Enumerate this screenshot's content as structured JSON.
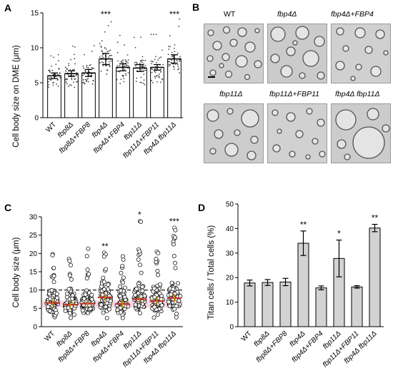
{
  "panelA": {
    "letter": "A",
    "ylabel": "Cell body size on DME (μm)",
    "ylim": [
      0,
      15
    ],
    "yticks": [
      "0",
      "5",
      "10",
      "15"
    ],
    "chart_data": {
      "type": "bar",
      "categories": [
        "WT",
        "fbp8Δ",
        "fbp8Δ+FBP8",
        "fbp4Δ",
        "fbp4Δ+FBP4",
        "fbp11Δ",
        "fbp11Δ+FBP11",
        "fbp4Δ fbp11Δ"
      ],
      "values": [
        6.0,
        6.3,
        6.4,
        8.4,
        7.2,
        7.1,
        7.2,
        8.4
      ],
      "errors": [
        0.4,
        0.4,
        0.5,
        0.8,
        0.5,
        0.5,
        0.4,
        0.6
      ],
      "significance": [
        "",
        "",
        "",
        "***",
        "",
        "",
        "",
        "***"
      ],
      "ylabel": "Cell body size on DME (μm)",
      "ylim": [
        0,
        15
      ]
    }
  },
  "panelB": {
    "letter": "B",
    "images": [
      {
        "label": "WT"
      },
      {
        "label": "fbp4Δ"
      },
      {
        "label": "fbp4Δ+FBP4"
      },
      {
        "label": "fbp11Δ"
      },
      {
        "label": "fbp11Δ+FBP11"
      },
      {
        "label": "fbp4Δ fbp11Δ"
      }
    ]
  },
  "panelC": {
    "letter": "C",
    "ylabel": "Cell body size (μm)",
    "ylim": [
      0,
      30
    ],
    "yticks": [
      "0",
      "5",
      "10",
      "15",
      "20",
      "25",
      "30"
    ],
    "chart_data": {
      "type": "scatter",
      "categories": [
        "WT",
        "fbp8Δ",
        "fbp8Δ+FBP8",
        "fbp4Δ",
        "fbp4Δ+FBP4",
        "fbp11Δ",
        "fbp11Δ+FBP11",
        "fbp4Δ fbp11Δ"
      ],
      "medians": [
        6.5,
        6.0,
        6.3,
        8.0,
        6.2,
        7.5,
        7.0,
        7.8
      ],
      "max_values": [
        19.8,
        18.5,
        21.3,
        20.2,
        19.2,
        28.8,
        20.5,
        27.0
      ],
      "threshold_line": 10,
      "significance": [
        "",
        "",
        "",
        "**",
        "",
        "*",
        "",
        "***"
      ],
      "ylabel": "Cell body size (μm)",
      "ylim": [
        0,
        30
      ]
    }
  },
  "panelD": {
    "letter": "D",
    "ylabel": "Titan cells / Total cells (%)",
    "ylim": [
      0,
      50
    ],
    "yticks": [
      "0",
      "10",
      "20",
      "30",
      "40",
      "50"
    ],
    "chart_data": {
      "type": "bar",
      "categories": [
        "WT",
        "fbp8Δ",
        "fbp8Δ+FBP8",
        "fbp4Δ",
        "fbp4Δ+FBP4",
        "fbp11Δ",
        "fbp11Δ+FBP11",
        "fbp4Δ fbp11Δ"
      ],
      "values": [
        17.8,
        18.0,
        18.2,
        34.0,
        15.8,
        27.8,
        16.2,
        40.2
      ],
      "errors": [
        1.2,
        1.2,
        1.5,
        5.0,
        0.8,
        7.5,
        0.5,
        1.5
      ],
      "significance": [
        "",
        "",
        "",
        "**",
        "",
        "*",
        "",
        "**"
      ],
      "ylabel": "Titan cells / Total cells (%)",
      "ylim": [
        0,
        50
      ]
    }
  }
}
